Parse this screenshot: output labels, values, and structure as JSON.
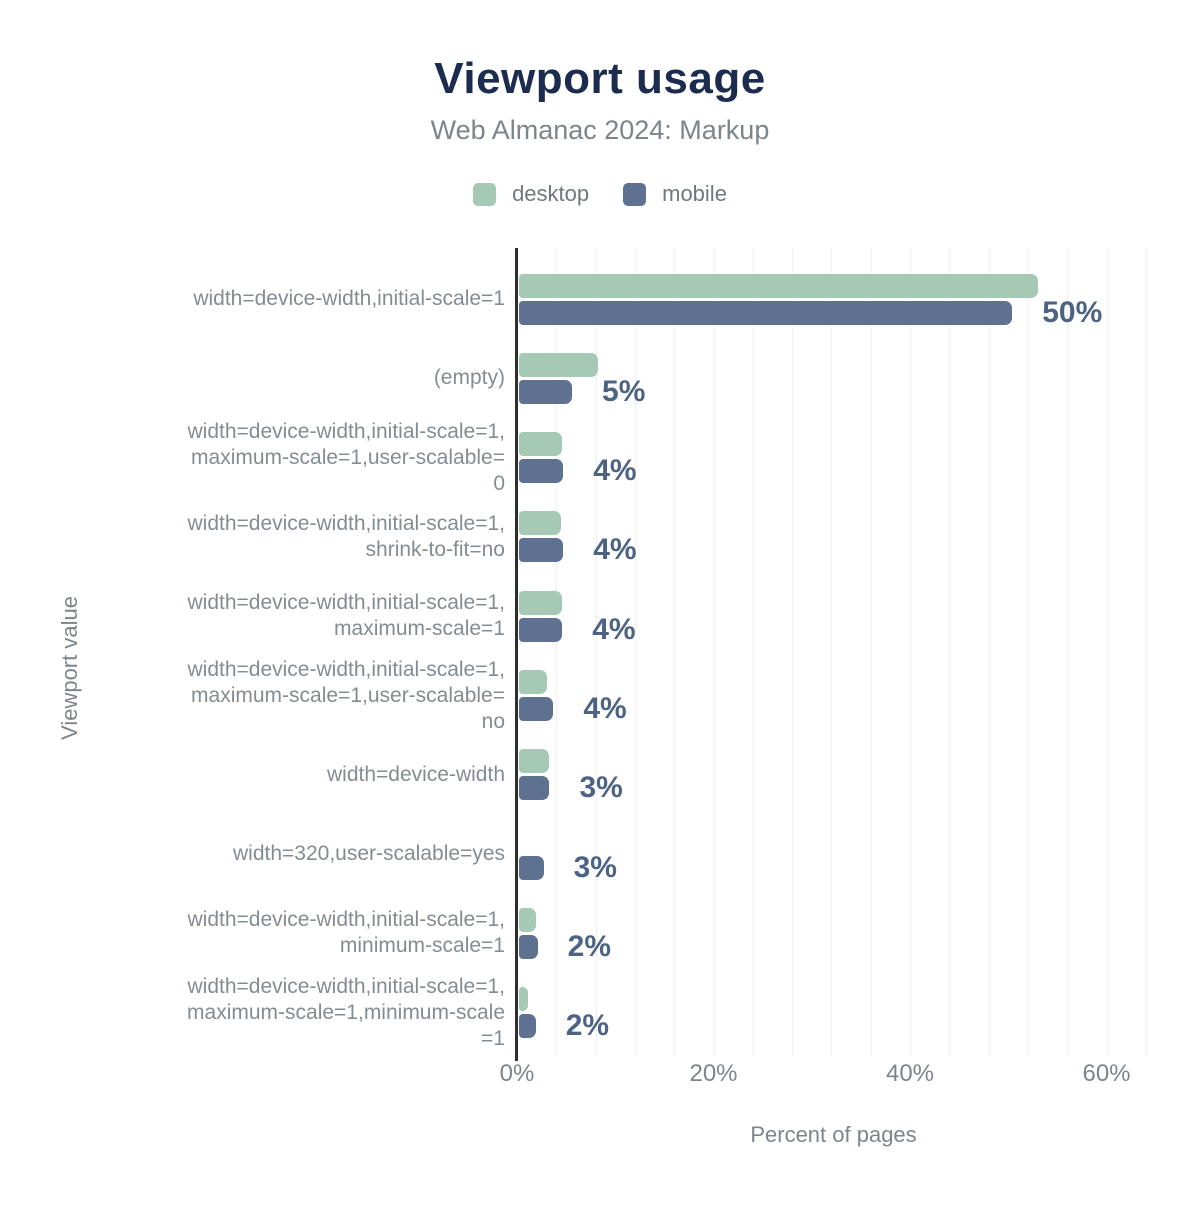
{
  "header": {
    "title": "Viewport usage",
    "subtitle": "Web Almanac 2024: Markup"
  },
  "legend": {
    "items": [
      {
        "label": "desktop",
        "color": "#a5c9b5"
      },
      {
        "label": "mobile",
        "color": "#5f7190"
      }
    ]
  },
  "axes": {
    "x_title": "Percent of pages",
    "y_title": "Viewport value",
    "x_ticks": [
      "0%",
      "20%",
      "40%",
      "60%"
    ]
  },
  "colors": {
    "title": "#1c2c4e",
    "subtitle": "#7c848c",
    "desktop_bar": "#a5c9b5",
    "mobile_bar": "#5f7190",
    "data_label": "#4d6384",
    "axis_line": "#2e2e2e",
    "gridline": "#f0f1f2",
    "category_label": "#848c93"
  },
  "chart_data": {
    "type": "bar",
    "orientation": "horizontal",
    "title": "Viewport usage",
    "subtitle": "Web Almanac 2024: Markup",
    "xlabel": "Percent of pages",
    "ylabel": "Viewport value",
    "xlim": [
      0,
      64.4
    ],
    "x_tick_values": [
      0,
      20,
      40,
      60
    ],
    "x_tick_labels": [
      "0%",
      "20%",
      "40%",
      "60%"
    ],
    "gridlines": {
      "show": true,
      "step_pct": 4
    },
    "legend_position": "top",
    "categories": [
      "width=device-width,initial-scale=1",
      "(empty)",
      "width=device-width,initial-scale=1,\nmaximum-scale=1,user-scalable=\n0",
      "width=device-width,initial-scale=1,\nshrink-to-fit=no",
      "width=device-width,initial-scale=1,\nmaximum-scale=1",
      "width=device-width,initial-scale=1,\nmaximum-scale=1,user-scalable=\nno",
      "width=device-width",
      "width=320,user-scalable=yes",
      "width=device-width,initial-scale=1,\nminimum-scale=1",
      "width=device-width,initial-scale=1,\nmaximum-scale=1,minimum-scale\n=1"
    ],
    "series": [
      {
        "name": "desktop",
        "color": "#a5c9b5",
        "values": [
          52.8,
          8.0,
          4.4,
          4.3,
          4.4,
          2.9,
          3.1,
          0,
          1.7,
          0.9
        ]
      },
      {
        "name": "mobile",
        "color": "#5f7190",
        "values": [
          50.2,
          5.4,
          4.5,
          4.5,
          4.4,
          3.5,
          3.1,
          2.5,
          1.9,
          1.7
        ]
      }
    ],
    "data_labels": {
      "attached_to_series": "mobile",
      "values": [
        "50%",
        "5%",
        "4%",
        "4%",
        "4%",
        "4%",
        "3%",
        "3%",
        "2%",
        "2%"
      ]
    }
  }
}
